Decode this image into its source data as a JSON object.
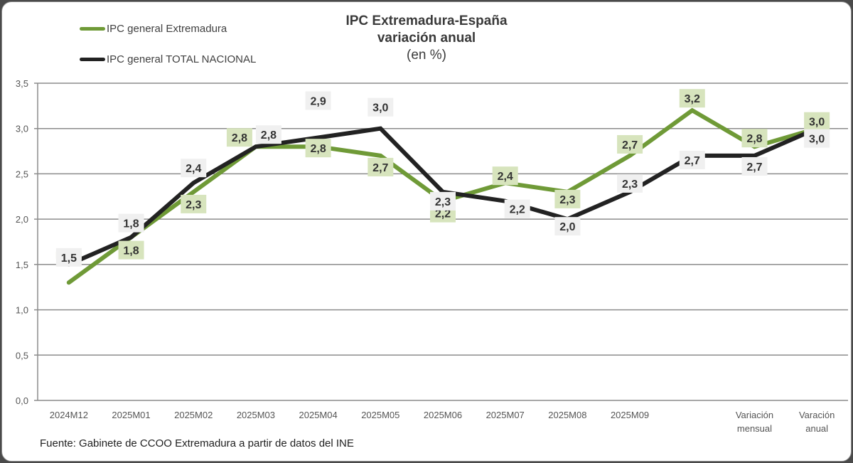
{
  "chart_data": {
    "type": "line",
    "title": "IPC Extremadura-España",
    "subtitle": "variación anual",
    "unit_note": "(en %)",
    "xlabel": "",
    "ylabel": "",
    "ylim": [
      0,
      3.5
    ],
    "yticks": [
      "0,0",
      "0,5",
      "1,0",
      "1,5",
      "2,0",
      "2,5",
      "3,0",
      "3,5"
    ],
    "ytick_values": [
      0,
      0.5,
      1.0,
      1.5,
      2.0,
      2.5,
      3.0,
      3.5
    ],
    "grid": true,
    "legend_position": "top-left",
    "categories": [
      "2024M12",
      "2025M01",
      "2025M02",
      "2025M03",
      "2025M04",
      "2025M05",
      "2025M06",
      "2025M07",
      "2025M08",
      "2025M09",
      "",
      "Variación mensual",
      "Varación anual"
    ],
    "category_lines": [
      [
        "2024M12"
      ],
      [
        "2025M01"
      ],
      [
        "2025M02"
      ],
      [
        "2025M03"
      ],
      [
        "2025M04"
      ],
      [
        "2025M05"
      ],
      [
        "2025M06"
      ],
      [
        "2025M07"
      ],
      [
        "2025M08"
      ],
      [
        "2025M09"
      ],
      [
        ""
      ],
      [
        "Variación",
        "mensual"
      ],
      [
        "Varación",
        "anual"
      ]
    ],
    "series": [
      {
        "name": "IPC general Extremadura",
        "color": "#6f9a37",
        "label_bg": "#d7e4bd",
        "values": [
          1.3,
          1.8,
          2.3,
          2.8,
          2.8,
          2.7,
          2.2,
          2.4,
          2.3,
          2.7,
          3.2,
          2.8,
          3.0
        ],
        "labels": [
          "",
          "1,8",
          "2,3",
          "2,8",
          "2,8",
          "2,7",
          "2,2",
          "2,4",
          "2,3",
          "2,7",
          "3,2",
          "2,8",
          "3,0"
        ]
      },
      {
        "name": "IPC general TOTAL NACIONAL",
        "color": "#222222",
        "label_bg": "#f0f0f0",
        "values": [
          1.5,
          1.8,
          2.4,
          2.8,
          2.9,
          3.0,
          2.3,
          2.2,
          2.0,
          2.3,
          2.7,
          2.7,
          3.0
        ],
        "labels": [
          "1,5",
          "1,8",
          "2,4",
          "2,8",
          "2,9",
          "3,0",
          "2,3",
          "2,2",
          "2,0",
          "2,3",
          "2,7",
          "2,7",
          "3,0"
        ]
      }
    ],
    "source": "Fuente: Gabinete de CCOO Extremadura a partir de datos del INE"
  }
}
